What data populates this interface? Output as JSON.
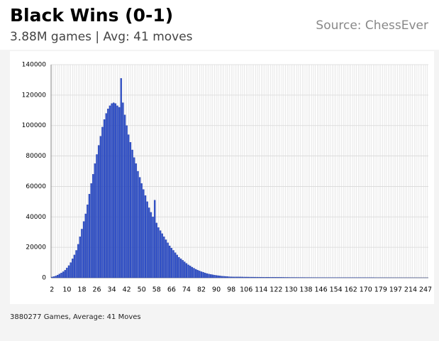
{
  "chart_data": {
    "type": "bar",
    "title": "Black Wins (0-1)",
    "subtitle": "3.88M games | Avg: 41 moves",
    "source": "Source: ChessEver",
    "footer": "3880277 Games, Average: 41 Moves",
    "color": "#3050c8",
    "grid": true,
    "ylim": [
      0,
      140000
    ],
    "yticks": [
      0,
      20000,
      40000,
      60000,
      80000,
      100000,
      120000,
      140000
    ],
    "categories": [
      2,
      null,
      null,
      null,
      null,
      null,
      null,
      null,
      10,
      null,
      null,
      null,
      null,
      null,
      null,
      null,
      18,
      null,
      null,
      null,
      null,
      null,
      null,
      null,
      26,
      null,
      null,
      null,
      null,
      null,
      null,
      null,
      34,
      null,
      null,
      null,
      null,
      null,
      null,
      null,
      42,
      null,
      null,
      null,
      null,
      null,
      null,
      null,
      50,
      null,
      null,
      null,
      null,
      null,
      null,
      null,
      58,
      null,
      null,
      null,
      null,
      null,
      null,
      null,
      66,
      null,
      null,
      null,
      null,
      null,
      null,
      null,
      74,
      null,
      null,
      null,
      null,
      null,
      null,
      null,
      82,
      null,
      null,
      null,
      null,
      null,
      null,
      null,
      90,
      null,
      null,
      null,
      null,
      null,
      null,
      null,
      98,
      null,
      null,
      null,
      null,
      null,
      null,
      null,
      106,
      null,
      null,
      null,
      null,
      null,
      null,
      null,
      114,
      null,
      null,
      null,
      null,
      null,
      null,
      null,
      122,
      null,
      null,
      null,
      null,
      null,
      null,
      null,
      130,
      null,
      null,
      null,
      null,
      null,
      null,
      null,
      138,
      null,
      null,
      null,
      null,
      null,
      null,
      null,
      146,
      null,
      null,
      null,
      null,
      null,
      null,
      null,
      154,
      null,
      null,
      null,
      null,
      null,
      null,
      null,
      162,
      null,
      null,
      null,
      null,
      null,
      null,
      null,
      170,
      null,
      null,
      null,
      null,
      null,
      null,
      null,
      179,
      null,
      null,
      null,
      null,
      null,
      null,
      null,
      197,
      null,
      null,
      null,
      null,
      null,
      null,
      null,
      214,
      null,
      null,
      null,
      null,
      null,
      null,
      null,
      247,
      null
    ],
    "values": [
      500,
      800,
      1200,
      1800,
      2500,
      3200,
      4000,
      5000,
      6500,
      8000,
      10000,
      12500,
      15000,
      18000,
      22000,
      27000,
      32000,
      37000,
      42000,
      48000,
      55000,
      62000,
      68000,
      75000,
      81000,
      87000,
      93000,
      99000,
      104000,
      108000,
      111000,
      113000,
      114500,
      115000,
      114500,
      113000,
      112000,
      131000,
      115000,
      107000,
      100000,
      94000,
      89000,
      84000,
      79000,
      75000,
      70000,
      66000,
      62000,
      58000,
      54000,
      50000,
      46000,
      43000,
      40000,
      51000,
      36000,
      33000,
      31000,
      29000,
      27000,
      25000,
      23000,
      21000,
      19500,
      18000,
      16500,
      15000,
      13500,
      12500,
      11500,
      10500,
      9500,
      8500,
      7800,
      7000,
      6300,
      5600,
      5000,
      4500,
      4000,
      3600,
      3200,
      2800,
      2500,
      2200,
      2000,
      1800,
      1600,
      1400,
      1250,
      1100,
      1000,
      900,
      800,
      700,
      650,
      600,
      600,
      580,
      560,
      540,
      520,
      500,
      490,
      480,
      470,
      460,
      450,
      440,
      430,
      420,
      410,
      400,
      390,
      380,
      370,
      360,
      350,
      340,
      330,
      320,
      310,
      300,
      290,
      280,
      270,
      260,
      250,
      245,
      240,
      235,
      230,
      225,
      220,
      215,
      210,
      205,
      200,
      195,
      190,
      185,
      180,
      175,
      170,
      165,
      160,
      155,
      150,
      145,
      140,
      135,
      130,
      125,
      120,
      115,
      110,
      105,
      100,
      98,
      96,
      94,
      92,
      90,
      88,
      86,
      84,
      82,
      80,
      78,
      76,
      74,
      72,
      70,
      68,
      66,
      64,
      62,
      60,
      58,
      56,
      54,
      52,
      50,
      48,
      46,
      44,
      42,
      40,
      38,
      36,
      34,
      32,
      30,
      28,
      26,
      24,
      22,
      20,
      18,
      16,
      14
    ]
  }
}
